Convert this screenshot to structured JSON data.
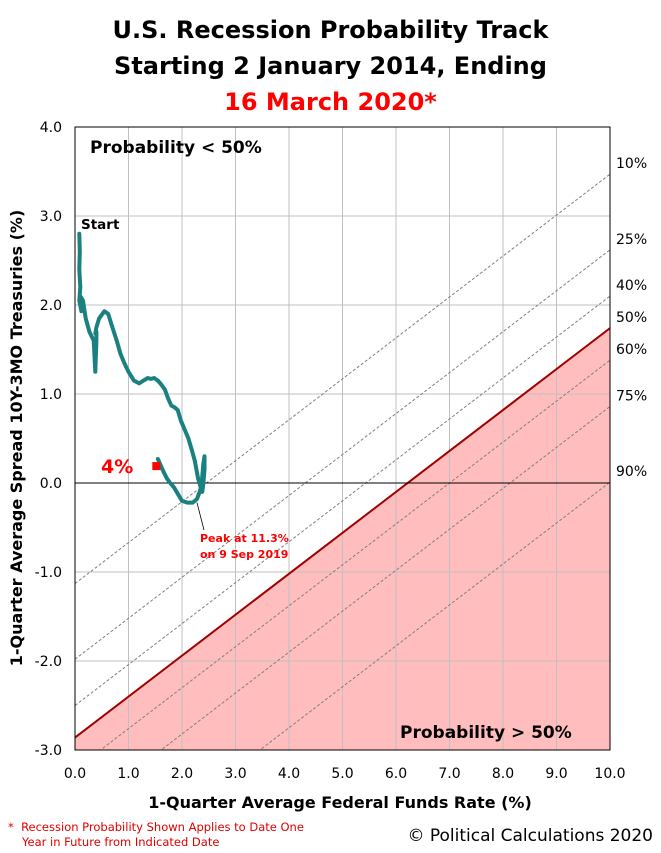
{
  "titles": {
    "line1": "U.S. Recession Probability Track",
    "line2": "Starting 2 January 2014, Ending",
    "line3": "16 March 2020*"
  },
  "footnote": {
    "marker": "*",
    "line1": "Recession Probability Shown Applies to Date One",
    "line2": "Year in Future from Indicated Date"
  },
  "copyright": "© Political Calculations 2020",
  "colors": {
    "track": "#1a8080",
    "red_text": "#ff0000",
    "threshold_line": "#a00000",
    "shade": "#ffbdbd",
    "grid": "#c0c0c0",
    "contour": "#808080"
  },
  "chart_data": {
    "type": "line",
    "title": "U.S. Recession Probability Track Starting 2 January 2014, Ending 16 March 2020*",
    "xlabel": "1-Quarter Average Federal Funds Rate (%)",
    "ylabel": "1-Quarter Average Spread 10Y-3MO Treasuries (%)",
    "xlim": [
      0,
      10
    ],
    "ylim": [
      -3,
      4
    ],
    "xticks": [
      "0.0",
      "1.0",
      "2.0",
      "3.0",
      "4.0",
      "5.0",
      "6.0",
      "7.0",
      "8.0",
      "9.0",
      "10.0"
    ],
    "yticks": [
      "4.0",
      "3.0",
      "2.0",
      "1.0",
      "0.0",
      "-1.0",
      "-2.0",
      "-3.0"
    ],
    "grid": true,
    "probability_contours": [
      {
        "label": "10%",
        "x": [
          0,
          10
        ],
        "y": [
          -1.13,
          3.47
        ]
      },
      {
        "label": "25%",
        "x": [
          0,
          10
        ],
        "y": [
          -1.98,
          2.62
        ]
      },
      {
        "label": "40%",
        "x": [
          0,
          10
        ],
        "y": [
          -2.5,
          2.1
        ]
      },
      {
        "label": "50%",
        "x": [
          0,
          10
        ],
        "y": [
          -2.86,
          1.74
        ]
      },
      {
        "label": "60%",
        "x": [
          0,
          10
        ],
        "y": [
          -3.22,
          1.38
        ]
      },
      {
        "label": "75%",
        "x": [
          0,
          10
        ],
        "y": [
          -3.74,
          0.86
        ]
      },
      {
        "label": "90%",
        "x": [
          0,
          10
        ],
        "y": [
          -4.59,
          0.01
        ]
      }
    ],
    "series": [
      {
        "name": "",
        "x": [
          0.08,
          0.09,
          0.08,
          0.1,
          0.08,
          0.12,
          0.1,
          0.12,
          0.15,
          0.2,
          0.27,
          0.35,
          0.38,
          0.4,
          0.4,
          0.38,
          0.4,
          0.45,
          0.55,
          0.62,
          0.7,
          0.78,
          0.85,
          0.92,
          1.0,
          1.1,
          1.2,
          1.28,
          1.36,
          1.42,
          1.48,
          1.55,
          1.62,
          1.68,
          1.74,
          1.8,
          1.86,
          1.92,
          1.98,
          2.05,
          2.12,
          2.18,
          2.24,
          2.3,
          2.35,
          2.38,
          2.4,
          2.42,
          2.42,
          2.4,
          2.36,
          2.28,
          2.2,
          2.1,
          2.0,
          1.92,
          1.85,
          1.78,
          1.72,
          1.66,
          1.6,
          1.55
        ],
        "y": [
          2.8,
          2.6,
          2.4,
          2.2,
          2.05,
          1.93,
          2.1,
          2.08,
          2.05,
          1.85,
          1.7,
          1.6,
          1.25,
          1.6,
          1.7,
          1.68,
          1.75,
          1.85,
          1.93,
          1.9,
          1.75,
          1.6,
          1.45,
          1.35,
          1.25,
          1.15,
          1.12,
          1.15,
          1.18,
          1.17,
          1.18,
          1.15,
          1.1,
          1.05,
          0.95,
          0.87,
          0.85,
          0.82,
          0.7,
          0.6,
          0.5,
          0.38,
          0.25,
          0.05,
          -0.05,
          -0.1,
          0.0,
          0.15,
          0.3,
          0.22,
          -0.05,
          -0.18,
          -0.22,
          -0.22,
          -0.2,
          -0.12,
          -0.05,
          0.0,
          0.05,
          0.12,
          0.2,
          0.27
        ]
      }
    ],
    "marker_point": {
      "x": 1.52,
      "y": 0.19
    },
    "annotations": {
      "start": "Start",
      "current": "4%",
      "peak_line1": "Peak at 11.3%",
      "peak_line2": "on 9 Sep 2019",
      "upper_region": "Probability < 50%",
      "lower_region": "Probability > 50%"
    }
  }
}
